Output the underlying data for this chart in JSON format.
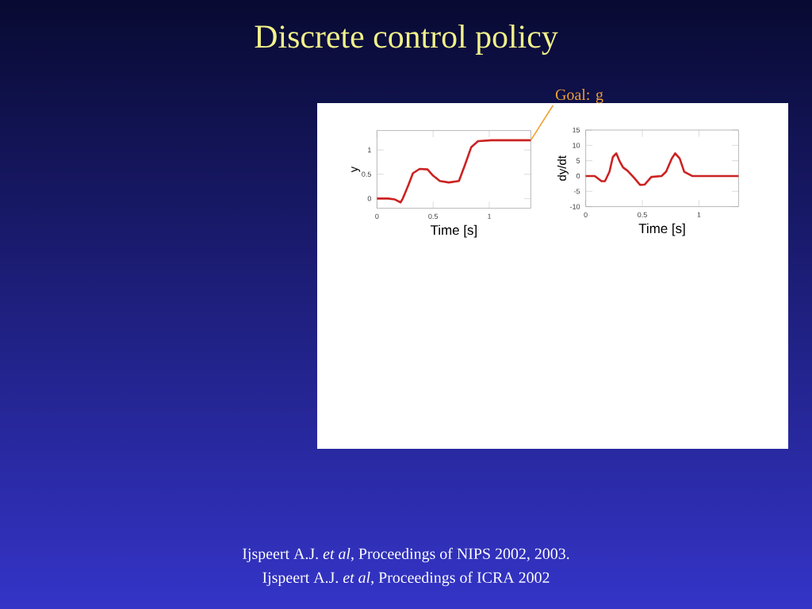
{
  "chart_data": [
    {
      "type": "line",
      "title": "Discrete control policy",
      "xlabel": "Time [s]",
      "ylabel": "y",
      "x": [
        0,
        0.1,
        0.16,
        0.21,
        0.23,
        0.28,
        0.32,
        0.38,
        0.45,
        0.5,
        0.56,
        0.64,
        0.73,
        0.78,
        0.84,
        0.9,
        1.02,
        1.37
      ],
      "series": [
        {
          "color": "#cc2222",
          "values": [
            0,
            0,
            -0.02,
            -0.08,
            0,
            0.28,
            0.52,
            0.61,
            0.6,
            0.47,
            0.36,
            0.33,
            0.36,
            0.67,
            1.06,
            1.18,
            1.2,
            1.2
          ]
        }
      ],
      "xlim": [
        0,
        1.37
      ],
      "ylim": [
        -0.2,
        1.4
      ],
      "xticks": [
        0,
        0.5,
        1
      ],
      "yticks": [
        0,
        0.5,
        1
      ],
      "annotations": [
        {
          "text": "Goal: g",
          "x": 1.37,
          "y": 1.2
        },
        "Ijspeert A.J. *et al*, Proceedings of NIPS 2002, 2003.",
        "Ijspeert A.J. *et al*, Proceedings of ICRA 2002"
      ]
    },
    {
      "type": "line",
      "xlabel": "Time [s]",
      "ylabel": "dy/dt",
      "x": [
        0,
        0.08,
        0.14,
        0.17,
        0.21,
        0.24,
        0.27,
        0.3,
        0.33,
        0.37,
        0.43,
        0.48,
        0.52,
        0.58,
        0.67,
        0.71,
        0.76,
        0.79,
        0.83,
        0.87,
        0.94,
        1.35
      ],
      "series": [
        {
          "color": "#cc2222",
          "values": [
            0,
            0,
            -1.7,
            -1.7,
            1.4,
            6.2,
            7.4,
            4.8,
            2.8,
            1.7,
            -0.7,
            -2.9,
            -2.8,
            -0.3,
            0,
            1.4,
            5.7,
            7.4,
            5.7,
            1.4,
            0,
            0
          ]
        }
      ],
      "xlim": [
        0,
        1.35
      ],
      "ylim": [
        -10,
        15
      ],
      "xticks": [
        0,
        0.5,
        1
      ],
      "yticks": [
        -10,
        -5,
        0,
        5,
        10,
        15
      ]
    }
  ]
}
